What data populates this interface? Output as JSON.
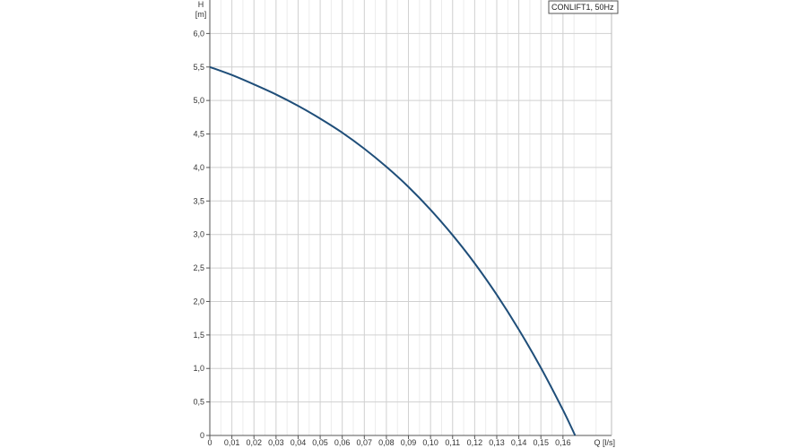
{
  "chart_data": {
    "type": "line",
    "title": "",
    "legend": {
      "text": "CONLIFT1, 50Hz",
      "placement": "top-right"
    },
    "y_axis": {
      "label_line1": "H",
      "label_line2": "[m]",
      "range": [
        0,
        6.5
      ],
      "ticks": [
        "0",
        "0,5",
        "1,0",
        "1,5",
        "2,0",
        "2,5",
        "3,0",
        "3,5",
        "4,0",
        "4,5",
        "5,0",
        "5,5",
        "6,0"
      ],
      "tick_values": [
        0,
        0.5,
        1.0,
        1.5,
        2.0,
        2.5,
        3.0,
        3.5,
        4.0,
        4.5,
        5.0,
        5.5,
        6.0
      ]
    },
    "x_axis": {
      "label": "Q [l/s]",
      "range": [
        0,
        0.182
      ],
      "ticks": [
        "0",
        "0,01",
        "0,02",
        "0,03",
        "0,04",
        "0,05",
        "0,06",
        "0,07",
        "0,08",
        "0,09",
        "0,10",
        "0,11",
        "0,12",
        "0,13",
        "0,14",
        "0,15",
        "0,16"
      ],
      "tick_values": [
        0,
        0.01,
        0.02,
        0.03,
        0.04,
        0.05,
        0.06,
        0.07,
        0.08,
        0.09,
        0.1,
        0.11,
        0.12,
        0.13,
        0.14,
        0.15,
        0.16
      ],
      "minor_step": 0.005
    },
    "grid": true,
    "colors": {
      "curve": "#1f4e79",
      "grid": "#d0d0d0",
      "axis": "#555555"
    },
    "series": [
      {
        "x": [
          0,
          0.01,
          0.02,
          0.03,
          0.04,
          0.05,
          0.06,
          0.07,
          0.08,
          0.09,
          0.1,
          0.11,
          0.12,
          0.13,
          0.14,
          0.15,
          0.16,
          0.1655
        ],
        "y": [
          5.5,
          5.38,
          5.24,
          5.09,
          4.92,
          4.73,
          4.52,
          4.28,
          4.01,
          3.71,
          3.37,
          2.99,
          2.57,
          2.1,
          1.58,
          1.01,
          0.38,
          0.0
        ]
      }
    ]
  }
}
